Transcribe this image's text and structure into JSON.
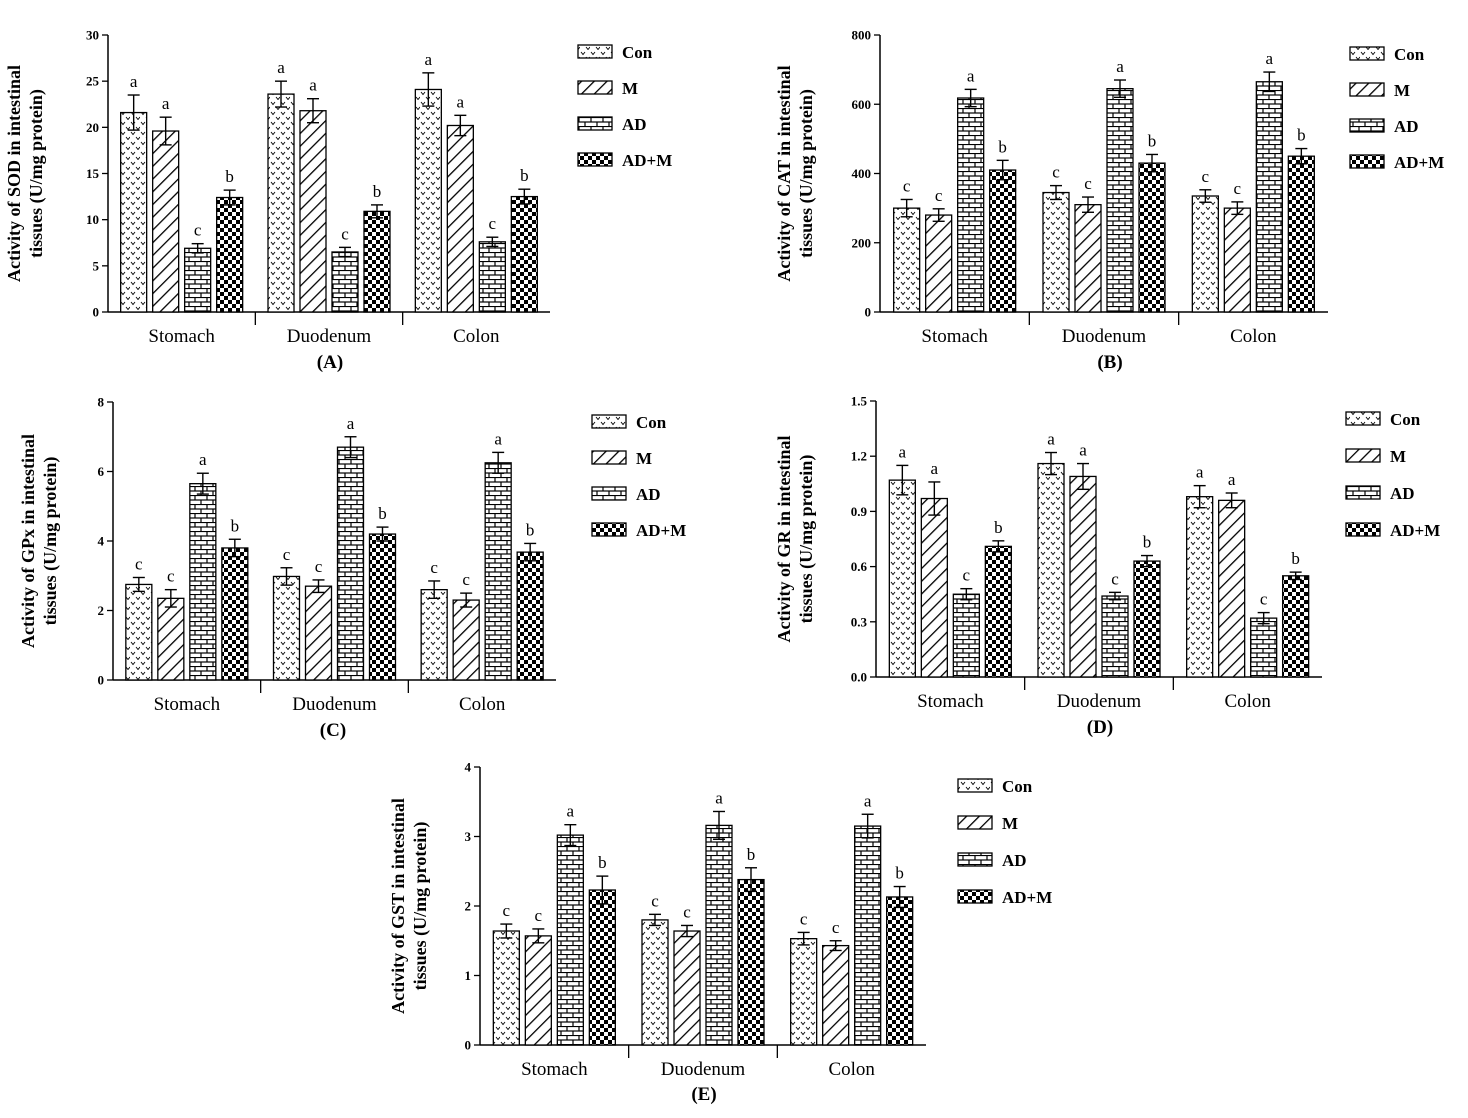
{
  "chart_data": [
    {
      "type": "bar",
      "panel_label": "(A)",
      "ylabel_lines": [
        "Activity of SOD in intestinal",
        "tissues (U/mg protein)"
      ],
      "categories": [
        "Stomach",
        "Duodenum",
        "Colon"
      ],
      "ylim": [
        0,
        30
      ],
      "yticks": [
        "0",
        "5",
        "10",
        "15",
        "20",
        "25",
        "30"
      ],
      "series": [
        {
          "name": "Con",
          "values": [
            21.6,
            23.6,
            24.1
          ],
          "errors": [
            1.9,
            1.4,
            1.8
          ],
          "letters": [
            "a",
            "a",
            "a"
          ]
        },
        {
          "name": "M",
          "values": [
            19.6,
            21.8,
            20.2
          ],
          "errors": [
            1.5,
            1.3,
            1.1
          ],
          "letters": [
            "a",
            "a",
            "a"
          ]
        },
        {
          "name": "AD",
          "values": [
            6.9,
            6.5,
            7.6
          ],
          "errors": [
            0.5,
            0.5,
            0.5
          ],
          "letters": [
            "c",
            "c",
            "c"
          ]
        },
        {
          "name": "AD+M",
          "values": [
            12.4,
            10.9,
            12.5
          ],
          "errors": [
            0.8,
            0.7,
            0.8
          ],
          "letters": [
            "b",
            "b",
            "b"
          ]
        }
      ],
      "legend": "right",
      "grid": false
    },
    {
      "type": "bar",
      "panel_label": "(B)",
      "ylabel_lines": [
        "Activity of CAT in intestinal",
        "tissues (U/mg protein)"
      ],
      "categories": [
        "Stomach",
        "Duodenum",
        "Colon"
      ],
      "ylim": [
        0,
        800
      ],
      "yticks": [
        "0",
        "200",
        "400",
        "600",
        "800"
      ],
      "series": [
        {
          "name": "Con",
          "values": [
            300,
            345,
            335
          ],
          "errors": [
            25,
            20,
            18
          ],
          "letters": [
            "c",
            "c",
            "c"
          ]
        },
        {
          "name": "M",
          "values": [
            280,
            310,
            300
          ],
          "errors": [
            18,
            22,
            18
          ],
          "letters": [
            "c",
            "c",
            "c"
          ]
        },
        {
          "name": "AD",
          "values": [
            618,
            645,
            665
          ],
          "errors": [
            25,
            25,
            28
          ],
          "letters": [
            "a",
            "a",
            "a"
          ]
        },
        {
          "name": "AD+M",
          "values": [
            410,
            430,
            450
          ],
          "errors": [
            28,
            25,
            22
          ],
          "letters": [
            "b",
            "b",
            "b"
          ]
        }
      ],
      "legend": "right",
      "grid": false
    },
    {
      "type": "bar",
      "panel_label": "(C)",
      "ylabel_lines": [
        "Activity of GPx in intestinal",
        "tissues (U/mg protein)"
      ],
      "categories": [
        "Stomach",
        "Duodenum",
        "Colon"
      ],
      "ylim": [
        0,
        8
      ],
      "yticks": [
        "0",
        "2",
        "4",
        "6",
        "8"
      ],
      "series": [
        {
          "name": "Con",
          "values": [
            2.75,
            2.98,
            2.6
          ],
          "errors": [
            0.2,
            0.25,
            0.25
          ],
          "letters": [
            "c",
            "c",
            "c"
          ]
        },
        {
          "name": "M",
          "values": [
            2.35,
            2.7,
            2.3
          ],
          "errors": [
            0.25,
            0.18,
            0.2
          ],
          "letters": [
            "c",
            "c",
            "c"
          ]
        },
        {
          "name": "AD",
          "values": [
            5.65,
            6.7,
            6.25
          ],
          "errors": [
            0.3,
            0.3,
            0.3
          ],
          "letters": [
            "a",
            "a",
            "a"
          ]
        },
        {
          "name": "AD+M",
          "values": [
            3.8,
            4.2,
            3.68
          ],
          "errors": [
            0.25,
            0.2,
            0.25
          ],
          "letters": [
            "b",
            "b",
            "b"
          ]
        }
      ],
      "legend": "right",
      "grid": false
    },
    {
      "type": "bar",
      "panel_label": "(D)",
      "ylabel_lines": [
        "Activity of GR in intestinal",
        "tissues (U/mg protein)"
      ],
      "categories": [
        "Stomach",
        "Duodenum",
        "Colon"
      ],
      "ylim": [
        0,
        1.5
      ],
      "yticks": [
        "0.0",
        "0.3",
        "0.6",
        "0.9",
        "1.2",
        "1.5"
      ],
      "series": [
        {
          "name": "Con",
          "values": [
            1.07,
            1.16,
            0.98
          ],
          "errors": [
            0.08,
            0.06,
            0.06
          ],
          "letters": [
            "a",
            "a",
            "a"
          ]
        },
        {
          "name": "M",
          "values": [
            0.97,
            1.09,
            0.96
          ],
          "errors": [
            0.09,
            0.07,
            0.04
          ],
          "letters": [
            "a",
            "a",
            "a"
          ]
        },
        {
          "name": "AD",
          "values": [
            0.45,
            0.44,
            0.32
          ],
          "errors": [
            0.03,
            0.02,
            0.03
          ],
          "letters": [
            "c",
            "c",
            "c"
          ]
        },
        {
          "name": "AD+M",
          "values": [
            0.71,
            0.63,
            0.55
          ],
          "errors": [
            0.03,
            0.03,
            0.02
          ],
          "letters": [
            "b",
            "b",
            "b"
          ]
        }
      ],
      "legend": "right",
      "grid": false
    },
    {
      "type": "bar",
      "panel_label": "(E)",
      "ylabel_lines": [
        "Activity of GST in intestinal",
        "tissues (U/mg protein)"
      ],
      "categories": [
        "Stomach",
        "Duodenum",
        "Colon"
      ],
      "ylim": [
        0,
        4
      ],
      "yticks": [
        "0",
        "1",
        "2",
        "3",
        "4"
      ],
      "series": [
        {
          "name": "Con",
          "values": [
            1.64,
            1.8,
            1.53
          ],
          "errors": [
            0.1,
            0.08,
            0.09
          ],
          "letters": [
            "c",
            "c",
            "c"
          ]
        },
        {
          "name": "M",
          "values": [
            1.57,
            1.64,
            1.43
          ],
          "errors": [
            0.1,
            0.08,
            0.07
          ],
          "letters": [
            "c",
            "c",
            "c"
          ]
        },
        {
          "name": "AD",
          "values": [
            3.02,
            3.16,
            3.15
          ],
          "errors": [
            0.15,
            0.2,
            0.17
          ],
          "letters": [
            "a",
            "a",
            "a"
          ]
        },
        {
          "name": "AD+M",
          "values": [
            2.23,
            2.38,
            2.13
          ],
          "errors": [
            0.2,
            0.17,
            0.15
          ],
          "letters": [
            "b",
            "b",
            "b"
          ]
        }
      ],
      "legend": "right",
      "grid": false
    }
  ]
}
